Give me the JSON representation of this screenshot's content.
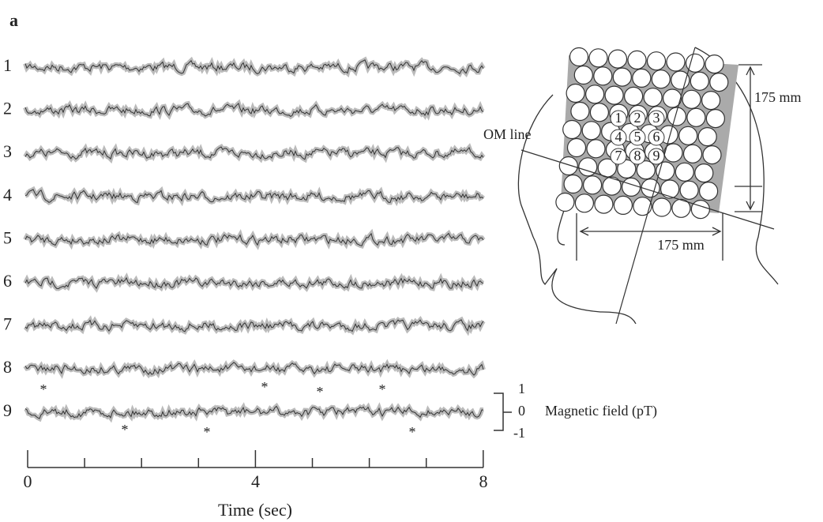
{
  "figure": {
    "panel_label": "a",
    "channels": [
      "1",
      "2",
      "3",
      "4",
      "5",
      "6",
      "7",
      "8",
      "9"
    ],
    "time_axis": {
      "tick_labels": [
        "0",
        "4",
        "8"
      ],
      "title": "Time (sec)"
    },
    "scale_bar": {
      "labels": [
        "1",
        "0",
        "-1"
      ],
      "title": "Magnetic field (pT)"
    },
    "markers": [
      "*",
      "*",
      "*",
      "*",
      "*",
      "*",
      "*",
      "*"
    ],
    "diagram": {
      "om_label": "OM line",
      "height_label": "175 mm",
      "width_label": "175 mm",
      "sensors": [
        "1",
        "2",
        "3",
        "4",
        "5",
        "6",
        "7",
        "8",
        "9"
      ]
    }
  }
}
